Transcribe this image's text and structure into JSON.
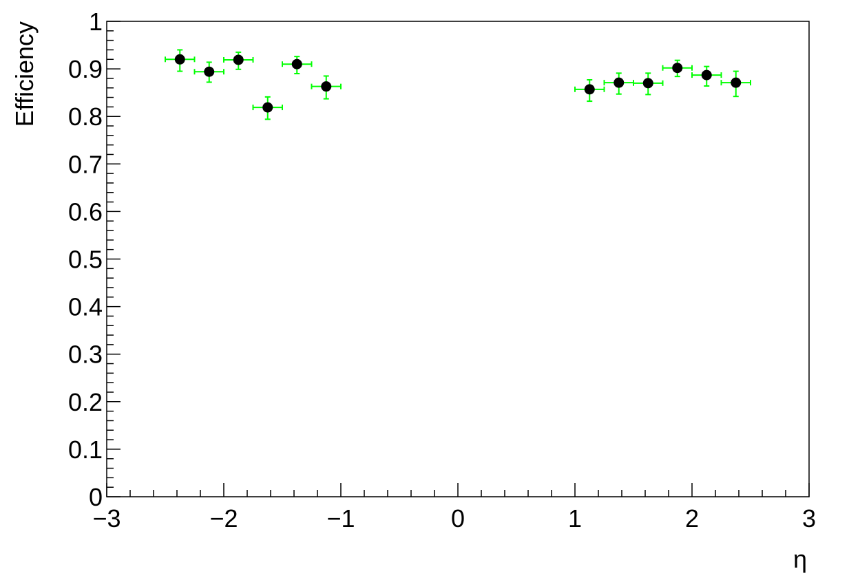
{
  "chart_data": {
    "type": "scatter",
    "title": "",
    "xlabel": "η",
    "ylabel": "Efficiency",
    "xlim": [
      -3,
      3
    ],
    "ylim": [
      0,
      1
    ],
    "grid": false,
    "legend": "none",
    "x_tick_labels": [
      "−3",
      "−2",
      "−1",
      "0",
      "1",
      "2",
      "3"
    ],
    "y_tick_labels": [
      "0",
      "0.1",
      "0.2",
      "0.3",
      "0.4",
      "0.5",
      "0.6",
      "0.7",
      "0.8",
      "0.9",
      "1"
    ],
    "series": [
      {
        "name": "Efficiency",
        "marker_color": "#000000",
        "error_bar_color": "#00ff00",
        "points": [
          {
            "x": -2.375,
            "y": 0.92,
            "xerr": 0.125,
            "yerr_low": 0.025,
            "yerr_high": 0.02
          },
          {
            "x": -2.125,
            "y": 0.894,
            "xerr": 0.125,
            "yerr_low": 0.022,
            "yerr_high": 0.02
          },
          {
            "x": -1.875,
            "y": 0.919,
            "xerr": 0.125,
            "yerr_low": 0.02,
            "yerr_high": 0.016
          },
          {
            "x": -1.625,
            "y": 0.819,
            "xerr": 0.125,
            "yerr_low": 0.025,
            "yerr_high": 0.022
          },
          {
            "x": -1.375,
            "y": 0.91,
            "xerr": 0.125,
            "yerr_low": 0.02,
            "yerr_high": 0.016
          },
          {
            "x": -1.125,
            "y": 0.863,
            "xerr": 0.125,
            "yerr_low": 0.026,
            "yerr_high": 0.022
          },
          {
            "x": 1.125,
            "y": 0.857,
            "xerr": 0.125,
            "yerr_low": 0.025,
            "yerr_high": 0.02
          },
          {
            "x": 1.375,
            "y": 0.871,
            "xerr": 0.125,
            "yerr_low": 0.024,
            "yerr_high": 0.02
          },
          {
            "x": 1.625,
            "y": 0.87,
            "xerr": 0.125,
            "yerr_low": 0.024,
            "yerr_high": 0.021
          },
          {
            "x": 1.875,
            "y": 0.902,
            "xerr": 0.125,
            "yerr_low": 0.018,
            "yerr_high": 0.016
          },
          {
            "x": 2.125,
            "y": 0.887,
            "xerr": 0.125,
            "yerr_low": 0.023,
            "yerr_high": 0.018
          },
          {
            "x": 2.375,
            "y": 0.871,
            "xerr": 0.125,
            "yerr_low": 0.029,
            "yerr_high": 0.024
          }
        ]
      }
    ]
  }
}
